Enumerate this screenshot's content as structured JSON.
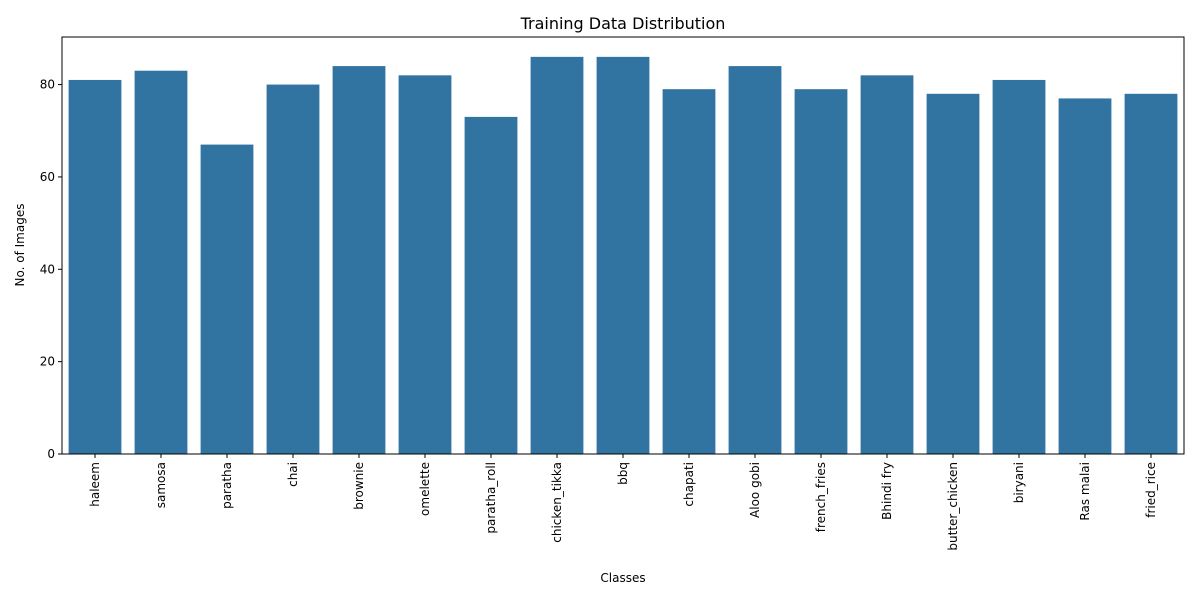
{
  "chart_data": {
    "type": "bar",
    "title": "Training Data Distribution",
    "xlabel": "Classes",
    "ylabel": "No. of Images",
    "categories": [
      "haleem",
      "samosa",
      "paratha",
      "chai",
      "brownie",
      "omelette",
      "paratha_roll",
      "chicken_tikka",
      "bbq",
      "chapati",
      "Aloo gobi",
      "french_fries",
      "Bhindi fry",
      "butter_chicken",
      "biryani",
      "Ras malai",
      "fried_rice"
    ],
    "values": [
      81,
      83,
      67,
      80,
      84,
      82,
      73,
      86,
      86,
      79,
      84,
      79,
      82,
      78,
      81,
      77,
      78
    ],
    "ylim": [
      0,
      90.3
    ],
    "yticks": [
      0,
      20,
      40,
      60,
      80
    ],
    "bar_color": "#3274a1",
    "grid": false,
    "legend": "none"
  }
}
